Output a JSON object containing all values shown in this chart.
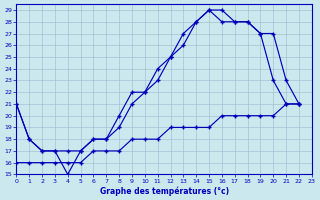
{
  "title": "Graphe des températures (°c)",
  "bg_color": "#cce8ef",
  "grid_color": "#9ab8cc",
  "line_color": "#0000bb",
  "xlim": [
    0,
    23
  ],
  "ylim": [
    15,
    29.5
  ],
  "xticks": [
    0,
    1,
    2,
    3,
    4,
    5,
    6,
    7,
    8,
    9,
    10,
    11,
    12,
    13,
    14,
    15,
    16,
    17,
    18,
    19,
    20,
    21,
    22,
    23
  ],
  "yticks": [
    15,
    16,
    17,
    18,
    19,
    20,
    21,
    22,
    23,
    24,
    25,
    26,
    27,
    28,
    29
  ],
  "line1_x": [
    0,
    1,
    2,
    3,
    4,
    5,
    6,
    7,
    8,
    9,
    10,
    11,
    12,
    13,
    14,
    15,
    16,
    17,
    18,
    19,
    20,
    21,
    22
  ],
  "line1_y": [
    21,
    18,
    17,
    17,
    15,
    17,
    18,
    18,
    20,
    22,
    22,
    24,
    25,
    27,
    28,
    29,
    29,
    28,
    28,
    27,
    23,
    21,
    21
  ],
  "line2_x": [
    0,
    1,
    2,
    3,
    4,
    5,
    6,
    7,
    8,
    9,
    10,
    11,
    12,
    13,
    14,
    15,
    16,
    17,
    18,
    19,
    20,
    21,
    22
  ],
  "line2_y": [
    21,
    18,
    17,
    17,
    17,
    17,
    18,
    18,
    19,
    21,
    22,
    23,
    25,
    26,
    28,
    29,
    28,
    28,
    28,
    27,
    27,
    23,
    21
  ],
  "line3_x": [
    0,
    1,
    2,
    3,
    4,
    5,
    6,
    7,
    8,
    9,
    10,
    11,
    12,
    13,
    14,
    15,
    16,
    17,
    18,
    19,
    20,
    21,
    22
  ],
  "line3_y": [
    16,
    16,
    16,
    16,
    16,
    16,
    17,
    17,
    17,
    18,
    18,
    18,
    19,
    19,
    19,
    19,
    20,
    20,
    20,
    20,
    20,
    21,
    21
  ]
}
